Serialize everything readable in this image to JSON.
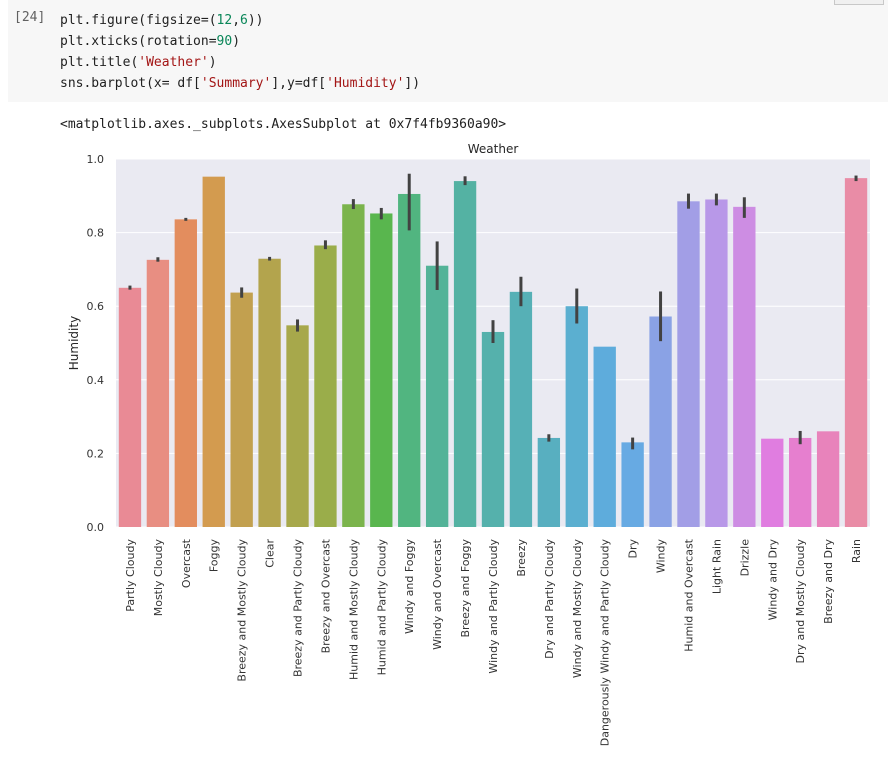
{
  "cell": {
    "prompt": "[24]",
    "code_lines": [
      "plt.figure(figsize=(12,6))",
      "plt.xticks(rotation=90)",
      "plt.title('Weather')",
      "sns.barplot(x= df['Summary'],y=df['Humidity'])"
    ],
    "output_text": "<matplotlib.axes._subplots.AxesSubplot at 0x7f4fb9360a90>"
  },
  "chart_data": {
    "type": "bar",
    "title": "Weather",
    "xlabel": "",
    "ylabel": "Humidity",
    "ylim": [
      0,
      1.0
    ],
    "yticks": [
      0.0,
      0.2,
      0.4,
      0.6,
      0.8,
      1.0
    ],
    "ytick_labels": [
      "0.0",
      "0.2",
      "0.4",
      "0.6",
      "0.8",
      "1.0"
    ],
    "grid": true,
    "background": "#eaeaf2",
    "error_bar_color": "#424242",
    "categories": [
      "Partly Cloudy",
      "Mostly Cloudy",
      "Overcast",
      "Foggy",
      "Breezy and Mostly Cloudy",
      "Clear",
      "Breezy and Partly Cloudy",
      "Breezy and Overcast",
      "Humid and Mostly Cloudy",
      "Humid and Partly Cloudy",
      "Windy and Foggy",
      "Windy and Overcast",
      "Breezy and Foggy",
      "Windy and Partly Cloudy",
      "Breezy",
      "Dry and Partly Cloudy",
      "Windy and Mostly Cloudy",
      "Dangerously Windy and Partly Cloudy",
      "Dry",
      "Windy",
      "Humid and Overcast",
      "Light Rain",
      "Drizzle",
      "Windy and Dry",
      "Dry and Mostly Cloudy",
      "Breezy and Dry",
      "Rain"
    ],
    "values": [
      0.65,
      0.726,
      0.836,
      0.952,
      0.637,
      0.729,
      0.548,
      0.765,
      0.877,
      0.852,
      0.905,
      0.71,
      0.94,
      0.53,
      0.639,
      0.242,
      0.6,
      0.49,
      0.23,
      0.572,
      0.885,
      0.89,
      0.87,
      0.24,
      0.242,
      0.26,
      0.948
    ],
    "ci_low": [
      0.645,
      0.721,
      0.832,
      0.952,
      0.623,
      0.724,
      0.531,
      0.755,
      0.864,
      0.836,
      0.806,
      0.644,
      0.929,
      0.5,
      0.6,
      0.232,
      0.553,
      0.49,
      0.211,
      0.505,
      0.865,
      0.874,
      0.84,
      0.24,
      0.225,
      0.26,
      0.94
    ],
    "ci_high": [
      0.656,
      0.733,
      0.84,
      0.952,
      0.651,
      0.734,
      0.564,
      0.779,
      0.891,
      0.867,
      0.96,
      0.776,
      0.953,
      0.562,
      0.68,
      0.252,
      0.648,
      0.49,
      0.243,
      0.64,
      0.906,
      0.906,
      0.896,
      0.24,
      0.261,
      0.26,
      0.955
    ],
    "colors": [
      "#e98a95",
      "#e88e82",
      "#e38d5e",
      "#d39b4f",
      "#c2a04f",
      "#b3a44d",
      "#a7a84b",
      "#9aad4a",
      "#7bb44c",
      "#59b64e",
      "#51b580",
      "#53b398",
      "#54b2a3",
      "#55b1ac",
      "#56b0b6",
      "#58afc0",
      "#5bafd0",
      "#5eacdc",
      "#67aae3",
      "#8aa2e5",
      "#a29ee6",
      "#b898e8",
      "#cd8de3",
      "#e07de0",
      "#e67fcf",
      "#e883bb",
      "#e98ca6"
    ]
  }
}
